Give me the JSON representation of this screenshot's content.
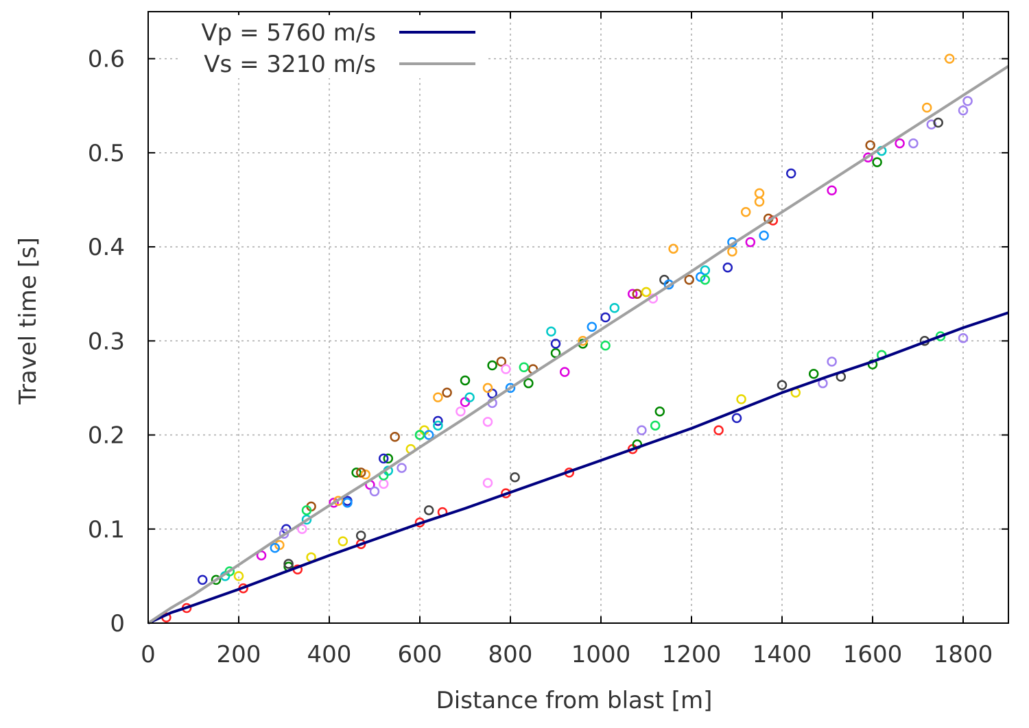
{
  "chart_data": {
    "type": "scatter",
    "title": "",
    "xlabel": "Distance from blast [m]",
    "ylabel": "Travel time [s]",
    "xlim": [
      0,
      1900
    ],
    "ylim": [
      0,
      0.65
    ],
    "x_ticks": [
      0,
      200,
      400,
      600,
      800,
      1000,
      1200,
      1400,
      1600,
      1800
    ],
    "x_tick_labels": [
      "0",
      "200",
      "400",
      "600",
      "800",
      "1000",
      "1200",
      "1400",
      "1600",
      "1800"
    ],
    "y_ticks": [
      0,
      0.1,
      0.2,
      0.3,
      0.4,
      0.5,
      0.6
    ],
    "y_tick_labels": [
      "0",
      "0.1",
      "0.2",
      "0.3",
      "0.4",
      "0.5",
      "0.6"
    ],
    "grid": true,
    "legend": {
      "position": "top-left",
      "entries": [
        {
          "label": "Vp = 5760 m/s",
          "color": "#000080"
        },
        {
          "label": "Vs = 3210 m/s",
          "color": "#a0a0a0"
        }
      ]
    },
    "lines": [
      {
        "name": "Vp = 5760 m/s",
        "color": "#000080",
        "x": [
          0,
          50,
          100,
          200,
          300,
          400,
          500,
          600,
          700,
          800,
          900,
          1000,
          1100,
          1200,
          1300,
          1400,
          1500,
          1600,
          1700,
          1800,
          1900
        ],
        "y": [
          0,
          0.011,
          0.019,
          0.036,
          0.054,
          0.072,
          0.089,
          0.106,
          0.122,
          0.139,
          0.156,
          0.173,
          0.19,
          0.207,
          0.226,
          0.245,
          0.262,
          0.278,
          0.296,
          0.314,
          0.33
        ]
      },
      {
        "name": "Vs = 3210 m/s",
        "color": "#a0a0a0",
        "x": [
          0,
          50,
          100,
          200,
          300,
          400,
          500,
          600,
          700,
          800,
          900,
          1000,
          1100,
          1200,
          1300,
          1400,
          1500,
          1600,
          1700,
          1800,
          1900
        ],
        "y": [
          0,
          0.016,
          0.03,
          0.062,
          0.094,
          0.125,
          0.155,
          0.187,
          0.218,
          0.25,
          0.281,
          0.312,
          0.343,
          0.374,
          0.406,
          0.437,
          0.468,
          0.499,
          0.53,
          0.561,
          0.592
        ]
      }
    ],
    "series": [
      {
        "name": "red",
        "color": "#ff2020",
        "x": [
          40,
          85,
          210,
          330,
          470,
          600,
          650,
          790,
          930,
          1070,
          1260,
          1380
        ],
        "y": [
          0.006,
          0.016,
          0.037,
          0.057,
          0.084,
          0.107,
          0.118,
          0.138,
          0.16,
          0.185,
          0.205,
          0.428
        ]
      },
      {
        "name": "green",
        "color": "#008800",
        "x": [
          150,
          310,
          460,
          530,
          600,
          700,
          760,
          840,
          900,
          960,
          1080,
          1130,
          1470,
          1600,
          1610
        ],
        "y": [
          0.046,
          0.06,
          0.16,
          0.175,
          0.2,
          0.258,
          0.274,
          0.255,
          0.287,
          0.297,
          0.19,
          0.225,
          0.265,
          0.275,
          0.49
        ]
      },
      {
        "name": "blue",
        "color": "#2020c0",
        "x": [
          120,
          305,
          440,
          520,
          640,
          760,
          900,
          1010,
          1150,
          1280,
          1420,
          1300
        ],
        "y": [
          0.046,
          0.1,
          0.13,
          0.175,
          0.215,
          0.244,
          0.297,
          0.325,
          0.36,
          0.378,
          0.478,
          0.218
        ]
      },
      {
        "name": "magenta",
        "color": "#dd00dd",
        "x": [
          250,
          410,
          490,
          700,
          920,
          1070,
          1330,
          1510,
          1590,
          1660
        ],
        "y": [
          0.072,
          0.128,
          0.147,
          0.235,
          0.267,
          0.35,
          0.405,
          0.46,
          0.495,
          0.51
        ]
      },
      {
        "name": "cyan",
        "color": "#00c8c8",
        "x": [
          170,
          350,
          530,
          640,
          710,
          890,
          1030,
          1230,
          1620
        ],
        "y": [
          0.05,
          0.11,
          0.162,
          0.21,
          0.24,
          0.31,
          0.335,
          0.375,
          0.502
        ]
      },
      {
        "name": "orange",
        "color": "#ffa820",
        "x": [
          290,
          420,
          480,
          640,
          750,
          960,
          1100,
          1160,
          1290,
          1320,
          1350,
          1350,
          1720,
          1770,
          1620
        ],
        "y": [
          0.083,
          0.13,
          0.158,
          0.24,
          0.25,
          0.3,
          0.352,
          0.398,
          0.395,
          0.437,
          0.448,
          0.457,
          0.548,
          0.6,
          0.285
        ]
      },
      {
        "name": "brown",
        "color": "#a05010",
        "x": [
          360,
          470,
          545,
          660,
          780,
          850,
          1080,
          1195,
          1595,
          1370
        ],
        "y": [
          0.124,
          0.16,
          0.198,
          0.245,
          0.278,
          0.27,
          0.35,
          0.365,
          0.508,
          0.43
        ]
      },
      {
        "name": "violet",
        "color": "#a080f0",
        "x": [
          300,
          500,
          560,
          760,
          1090,
          1490,
          1510,
          1690,
          1730,
          1800,
          1810,
          1800
        ],
        "y": [
          0.095,
          0.14,
          0.165,
          0.234,
          0.205,
          0.255,
          0.278,
          0.51,
          0.53,
          0.545,
          0.555,
          0.303
        ]
      },
      {
        "name": "pink",
        "color": "#ff90ff",
        "x": [
          340,
          520,
          690,
          750,
          790,
          1115,
          750
        ],
        "y": [
          0.1,
          0.148,
          0.225,
          0.214,
          0.27,
          0.345,
          0.149
        ]
      },
      {
        "name": "dark-gray",
        "color": "#404040",
        "x": [
          310,
          470,
          620,
          810,
          1140,
          1400,
          1530,
          1715,
          1745
        ],
        "y": [
          0.063,
          0.093,
          0.12,
          0.155,
          0.365,
          0.253,
          0.262,
          0.3,
          0.532
        ]
      },
      {
        "name": "yellow",
        "color": "#e8d800",
        "x": [
          200,
          360,
          430,
          580,
          610,
          1100,
          1310,
          1430
        ],
        "y": [
          0.05,
          0.07,
          0.087,
          0.185,
          0.205,
          0.352,
          0.238,
          0.245
        ]
      },
      {
        "name": "sky-blue",
        "color": "#1090ff",
        "x": [
          280,
          440,
          620,
          800,
          980,
          1150,
          1290,
          1360,
          1220
        ],
        "y": [
          0.08,
          0.128,
          0.2,
          0.25,
          0.315,
          0.36,
          0.405,
          0.412,
          0.368
        ]
      },
      {
        "name": "spring-green",
        "color": "#10e060",
        "x": [
          180,
          350,
          520,
          600,
          830,
          1010,
          1120,
          1230,
          1750,
          1620
        ],
        "y": [
          0.055,
          0.12,
          0.157,
          0.2,
          0.272,
          0.295,
          0.21,
          0.365,
          0.305,
          0.285
        ]
      }
    ]
  }
}
